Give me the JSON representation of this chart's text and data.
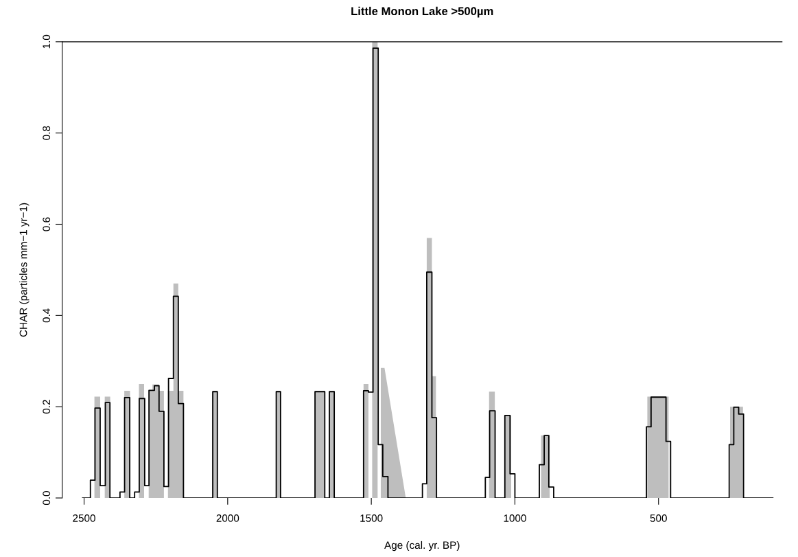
{
  "chart_data": {
    "type": "line",
    "title": "Little Monon Lake >500µm",
    "xlabel": "Age (cal. yr. BP)",
    "ylabel": "CHAR (particles mm−1 yr−1)",
    "xlim": [
      2576,
      70
    ],
    "xticks": [
      2500,
      2000,
      1500,
      1000,
      500
    ],
    "ylim": [
      0,
      1
    ],
    "yticks": [
      {
        "value": 0,
        "label": "0.0"
      },
      0.2,
      0.4,
      0.6,
      0.8,
      {
        "value": 1,
        "label": "1.0"
      }
    ],
    "grid": false,
    "legend": false,
    "series": [
      {
        "type": "area",
        "color": "#bebebe",
        "x": [
          2505,
          2464,
          2464,
          2444,
          2444,
          2428,
          2428,
          2409,
          2409,
          2360,
          2360,
          2340,
          2340,
          2309,
          2309,
          2291,
          2291,
          2275,
          2275,
          2262,
          2262,
          2239,
          2239,
          2222,
          2222,
          2208,
          2208,
          2189,
          2189,
          2172,
          2172,
          2154,
          2154,
          2052,
          2052,
          2036,
          2036,
          1831,
          1831,
          1816,
          1816,
          1696,
          1696,
          1662,
          1662,
          1646,
          1646,
          1629,
          1629,
          1527,
          1527,
          1510,
          1510,
          1497,
          1497,
          1478,
          1478,
          1467,
          1467,
          1454,
          1380,
          1307,
          1307,
          1289,
          1289,
          1275,
          1275,
          1090,
          1090,
          1070,
          1070,
          1035,
          1035,
          1013,
          1013,
          909,
          909,
          879,
          879,
          539,
          539,
          465,
          465,
          251,
          251,
          206,
          206,
          102
        ],
        "values": [
          0,
          0,
          0.222,
          0.222,
          0,
          0,
          0.222,
          0.222,
          0,
          0,
          0.235,
          0.235,
          0,
          0,
          0.25,
          0.25,
          0,
          0,
          0.236,
          0.236,
          0.249,
          0.249,
          0.235,
          0.235,
          0,
          0,
          0.235,
          0.235,
          0.47,
          0.47,
          0.235,
          0.235,
          0,
          0,
          0.235,
          0.235,
          0,
          0,
          0.235,
          0.235,
          0,
          0,
          0.235,
          0.235,
          0,
          0,
          0.235,
          0.235,
          0,
          0,
          0.25,
          0.25,
          0,
          0,
          1.0,
          1.0,
          0,
          0,
          0.285,
          0.285,
          0,
          0,
          0.57,
          0.57,
          0.267,
          0.267,
          0,
          0,
          0.233,
          0.233,
          0,
          0,
          0.181,
          0.181,
          0,
          0,
          0.137,
          0.137,
          0,
          0,
          0.222,
          0.222,
          0,
          0,
          0.2,
          0.2,
          0,
          0
        ]
      },
      {
        "color": "#000000",
        "x": [
          2505,
          2478,
          2478,
          2462,
          2462,
          2444,
          2444,
          2426,
          2426,
          2410,
          2410,
          2375,
          2375,
          2359,
          2359,
          2341,
          2341,
          2324,
          2324,
          2308,
          2308,
          2289,
          2289,
          2274,
          2274,
          2255,
          2255,
          2239,
          2239,
          2222,
          2222,
          2206,
          2206,
          2189,
          2189,
          2172,
          2172,
          2154,
          2154,
          2052,
          2052,
          2036,
          2036,
          1831,
          1831,
          1816,
          1816,
          1696,
          1696,
          1662,
          1662,
          1646,
          1646,
          1629,
          1629,
          1527,
          1527,
          1510,
          1510,
          1494,
          1494,
          1476,
          1476,
          1460,
          1460,
          1442,
          1442,
          1322,
          1322,
          1307,
          1307,
          1289,
          1289,
          1273,
          1273,
          1103,
          1103,
          1088,
          1088,
          1069,
          1069,
          1035,
          1035,
          1017,
          1017,
          1000,
          1000,
          915,
          915,
          898,
          898,
          882,
          882,
          865,
          865,
          542,
          542,
          526,
          526,
          474,
          474,
          458,
          458,
          254,
          254,
          238,
          238,
          221,
          221,
          204,
          204,
          102
        ],
        "values": [
          0,
          0,
          0.039,
          0.039,
          0.197,
          0.197,
          0.027,
          0.027,
          0.209,
          0.209,
          0,
          0,
          0.013,
          0.013,
          0.22,
          0.22,
          0,
          0,
          0.013,
          0.013,
          0.218,
          0.218,
          0.027,
          0.027,
          0.236,
          0.236,
          0.246,
          0.246,
          0.19,
          0.19,
          0.025,
          0.025,
          0.262,
          0.262,
          0.442,
          0.442,
          0.207,
          0.207,
          0,
          0,
          0.233,
          0.233,
          0,
          0,
          0.233,
          0.233,
          0,
          0,
          0.233,
          0.233,
          0,
          0,
          0.233,
          0.233,
          0,
          0,
          0.235,
          0.235,
          0.232,
          0.232,
          0.986,
          0.986,
          0.117,
          0.117,
          0.047,
          0.047,
          0,
          0,
          0.031,
          0.031,
          0.495,
          0.495,
          0.176,
          0.176,
          0,
          0,
          0.045,
          0.045,
          0.191,
          0.191,
          0,
          0,
          0.181,
          0.181,
          0.053,
          0.053,
          0,
          0,
          0.073,
          0.073,
          0.137,
          0.137,
          0.024,
          0.024,
          0,
          0,
          0.156,
          0.156,
          0.221,
          0.221,
          0.124,
          0.124,
          0,
          0,
          0.117,
          0.117,
          0.199,
          0.199,
          0.184,
          0.184,
          0,
          0
        ]
      }
    ]
  }
}
